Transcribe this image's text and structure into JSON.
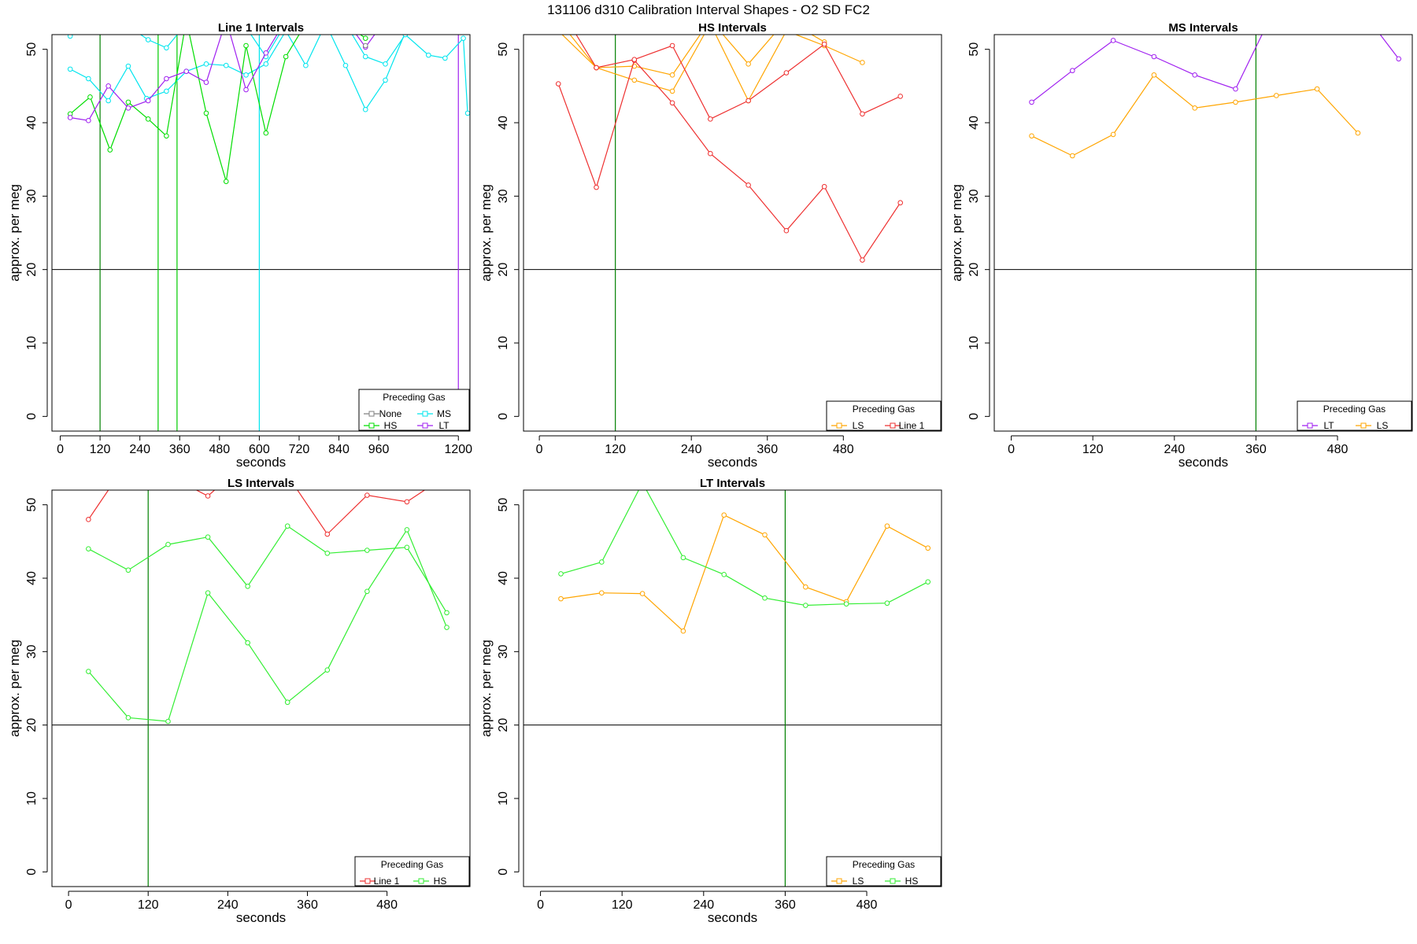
{
  "figure": {
    "title": "131106   d310   Calibration Interval Shapes - O2 SD FC2"
  },
  "chart_data": [
    {
      "type": "line",
      "title": "Line 1 Intervals",
      "xlabel": "seconds",
      "ylabel": "approx. per meg",
      "xlim": [
        -25,
        1235
      ],
      "ylim": [
        -2,
        52
      ],
      "xticks": [
        0,
        120,
        240,
        360,
        480,
        600,
        720,
        840,
        960,
        1200
      ],
      "yticks": [
        0,
        10,
        20,
        30,
        40,
        50
      ],
      "hline": 20,
      "vlines": [
        {
          "x": 120,
          "color": "#008000"
        },
        {
          "x": 295,
          "color": "#00cc00"
        },
        {
          "x": 352,
          "color": "#00cc00"
        },
        {
          "x": 600,
          "color": "#00e5ee"
        },
        {
          "x": 1200,
          "color": "#a020f0"
        }
      ],
      "legend": {
        "title": "Preceding Gas",
        "position": "bottom-right",
        "entries": [
          {
            "label": "None",
            "color": "#808080"
          },
          {
            "label": "MS",
            "color": "#00e5ee"
          },
          {
            "label": "HS",
            "color": "#00dd00"
          },
          {
            "label": "LT",
            "color": "#a020f0"
          }
        ]
      },
      "series": [
        {
          "color": "#00e5ee",
          "x": [
            30,
            85,
            145,
            205,
            260,
            320,
            380,
            440,
            500,
            560,
            620,
            680,
            740,
            800,
            860,
            920,
            980,
            1040
          ],
          "y": [
            47.3,
            46.0,
            43.0,
            47.7,
            43.3,
            44.3,
            47.0,
            48.0,
            47.8,
            46.5,
            48.0,
            52.5,
            47.8,
            53.5,
            47.8,
            41.8,
            45.8,
            52.3
          ]
        },
        {
          "color": "#00e5ee",
          "x": [
            30,
            90,
            150,
            210,
            265,
            320,
            380,
            440,
            500,
            560,
            620,
            680,
            740,
            800,
            860,
            920,
            980,
            1040,
            1110,
            1160,
            1215,
            1228
          ],
          "y": [
            51.8,
            53.5,
            54.0,
            53.0,
            51.3,
            50.2,
            53.5,
            54.0,
            52.8,
            53.0,
            49.0,
            53.5,
            54.0,
            55.0,
            53.5,
            49.0,
            48.0,
            52.0,
            49.2,
            48.8,
            51.5,
            41.3
          ]
        },
        {
          "color": "#00dd00",
          "x": [
            30,
            90,
            150,
            205,
            265,
            320,
            380,
            440,
            500,
            560,
            620,
            680,
            740,
            800,
            860,
            920
          ],
          "y": [
            41.2,
            43.5,
            36.3,
            42.8,
            40.5,
            38.2,
            54.0,
            41.3,
            32.0,
            50.5,
            38.6,
            49.0,
            53.5,
            54.0,
            53.5,
            51.5
          ]
        },
        {
          "color": "#a020f0",
          "x": [
            30,
            85,
            145,
            205,
            265,
            320,
            380,
            440,
            500,
            560,
            620,
            680,
            740,
            800,
            860,
            920,
            980,
            1040,
            1100,
            1160,
            1215
          ],
          "y": [
            40.7,
            40.3,
            45.0,
            42.0,
            43.0,
            46.0,
            47.0,
            45.5,
            54.0,
            44.5,
            49.5,
            54.0,
            56.0,
            55.0,
            54.0,
            50.3,
            54.0,
            55.0,
            56.0,
            54.0,
            56.0
          ]
        }
      ],
      "points": [
        {
          "x": 920,
          "y": 50.5,
          "color": "#808080"
        }
      ]
    },
    {
      "type": "line",
      "title": "HS Intervals",
      "xlabel": "seconds",
      "ylabel": "approx. per meg",
      "xlim": [
        -25,
        635
      ],
      "ylim": [
        -2,
        52
      ],
      "xticks": [
        0,
        120,
        240,
        360,
        480
      ],
      "yticks": [
        0,
        10,
        20,
        30,
        40,
        50
      ],
      "hline": 20,
      "vlines": [
        {
          "x": 120,
          "color": "#008000"
        }
      ],
      "legend": {
        "title": "Preceding Gas",
        "position": "bottom-right",
        "entries": [
          {
            "label": "LS",
            "color": "#ffa500"
          },
          {
            "label": "Line 1",
            "color": "#ee3030"
          }
        ]
      },
      "series": [
        {
          "color": "#ffa500",
          "x": [
            30,
            90,
            150,
            210,
            270,
            330,
            390,
            450,
            510
          ],
          "y": [
            52.5,
            47.5,
            45.8,
            44.3,
            53.5,
            43.0,
            52.5,
            50.5,
            48.2
          ]
        },
        {
          "color": "#ffa500",
          "x": [
            30,
            90,
            150,
            210,
            270,
            330,
            390,
            450
          ],
          "y": [
            54.0,
            47.5,
            47.7,
            46.5,
            54.0,
            48.0,
            54.0,
            51.0
          ]
        },
        {
          "color": "#ee3030",
          "x": [
            30,
            90,
            150,
            210,
            270,
            330,
            390,
            450,
            510,
            570
          ],
          "y": [
            45.3,
            31.2,
            48.5,
            42.7,
            35.8,
            31.5,
            25.3,
            31.3,
            21.3,
            29.1
          ]
        },
        {
          "color": "#ee3030",
          "x": [
            90,
            150,
            210,
            270,
            330,
            390,
            450,
            510,
            570
          ],
          "y": [
            47.5,
            48.6,
            50.5,
            40.5,
            43.0,
            46.8,
            50.7,
            41.2,
            43.6
          ]
        },
        {
          "color": "#ee3030",
          "x": [
            30,
            90
          ],
          "y": [
            56.0,
            47.5
          ]
        },
        {
          "color": "#ee3030",
          "x": [
            150,
            210
          ],
          "y": [
            56.0,
            54.0
          ]
        }
      ]
    },
    {
      "type": "line",
      "title": "MS Intervals",
      "xlabel": "seconds",
      "ylabel": "approx. per meg",
      "xlim": [
        -25,
        590
      ],
      "ylim": [
        -2,
        52
      ],
      "xticks": [
        0,
        120,
        240,
        360,
        480
      ],
      "yticks": [
        0,
        10,
        20,
        30,
        40,
        50
      ],
      "hline": 20,
      "vlines": [
        {
          "x": 360,
          "color": "#008000"
        }
      ],
      "legend": {
        "title": "Preceding Gas",
        "position": "bottom-right",
        "entries": [
          {
            "label": "LT",
            "color": "#a020f0"
          },
          {
            "label": "LS",
            "color": "#ffa500"
          }
        ]
      },
      "series": [
        {
          "color": "#a020f0",
          "x": [
            30,
            90,
            150,
            210,
            270,
            330,
            390,
            450,
            510,
            570
          ],
          "y": [
            42.8,
            47.1,
            51.2,
            49.0,
            46.5,
            44.6,
            56.0,
            57.0,
            56.0,
            48.7
          ]
        },
        {
          "color": "#ffa500",
          "x": [
            30,
            90,
            150,
            210,
            270,
            330,
            390,
            450,
            510
          ],
          "y": [
            38.2,
            35.5,
            38.4,
            46.5,
            42.0,
            42.8,
            43.7,
            44.6,
            38.6
          ]
        }
      ]
    },
    {
      "type": "line",
      "title": "LS Intervals",
      "xlabel": "seconds",
      "ylabel": "approx. per meg",
      "xlim": [
        -25,
        605
      ],
      "ylim": [
        -2,
        52
      ],
      "xticks": [
        0,
        120,
        240,
        360,
        480
      ],
      "yticks": [
        0,
        10,
        20,
        30,
        40,
        50
      ],
      "hline": 20,
      "vlines": [
        {
          "x": 120,
          "color": "#008000"
        }
      ],
      "legend": {
        "title": "Preceding Gas",
        "position": "bottom-right",
        "entries": [
          {
            "label": "Line 1",
            "color": "#ee3030"
          },
          {
            "label": "HS",
            "color": "#33ee33"
          }
        ]
      },
      "series": [
        {
          "color": "#ee3030",
          "x": [
            30,
            90,
            150,
            210,
            270,
            330,
            390,
            450,
            510,
            570
          ],
          "y": [
            48.0,
            56.0,
            54.0,
            51.2,
            56.0,
            54.0,
            46.0,
            51.3,
            50.4,
            54.0
          ]
        },
        {
          "color": "#33ee33",
          "x": [
            30,
            90,
            150,
            210,
            270,
            330,
            390,
            450,
            510,
            570
          ],
          "y": [
            44.0,
            41.1,
            44.6,
            45.6,
            38.9,
            47.1,
            43.4,
            43.8,
            44.2,
            35.3
          ]
        },
        {
          "color": "#33ee33",
          "x": [
            30,
            90,
            150,
            210,
            270,
            330,
            390,
            450,
            510,
            570
          ],
          "y": [
            27.3,
            21.0,
            20.5,
            38.0,
            31.2,
            23.1,
            27.5,
            38.2,
            46.6,
            33.3
          ]
        }
      ]
    },
    {
      "type": "line",
      "title": "LT Intervals",
      "xlabel": "seconds",
      "ylabel": "approx. per meg",
      "xlim": [
        -25,
        590
      ],
      "ylim": [
        -2,
        52
      ],
      "xticks": [
        0,
        120,
        240,
        360,
        480
      ],
      "yticks": [
        0,
        10,
        20,
        30,
        40,
        50
      ],
      "hline": 20,
      "vlines": [
        {
          "x": 360,
          "color": "#008000"
        }
      ],
      "legend": {
        "title": "Preceding Gas",
        "position": "bottom-right",
        "entries": [
          {
            "label": "LS",
            "color": "#ffa500"
          },
          {
            "label": "HS",
            "color": "#33ee33"
          }
        ]
      },
      "series": [
        {
          "color": "#ffa500",
          "x": [
            30,
            90,
            150,
            210,
            270,
            330,
            390,
            450,
            510,
            570
          ],
          "y": [
            37.2,
            38.0,
            37.9,
            32.8,
            48.6,
            45.9,
            38.8,
            36.8,
            47.1,
            44.1
          ]
        },
        {
          "color": "#33ee33",
          "x": [
            30,
            90,
            150,
            210,
            270,
            330,
            390,
            450,
            510,
            570
          ],
          "y": [
            40.6,
            42.2,
            53.0,
            42.8,
            40.5,
            37.3,
            36.3,
            36.5,
            36.6,
            39.5
          ]
        }
      ]
    }
  ]
}
